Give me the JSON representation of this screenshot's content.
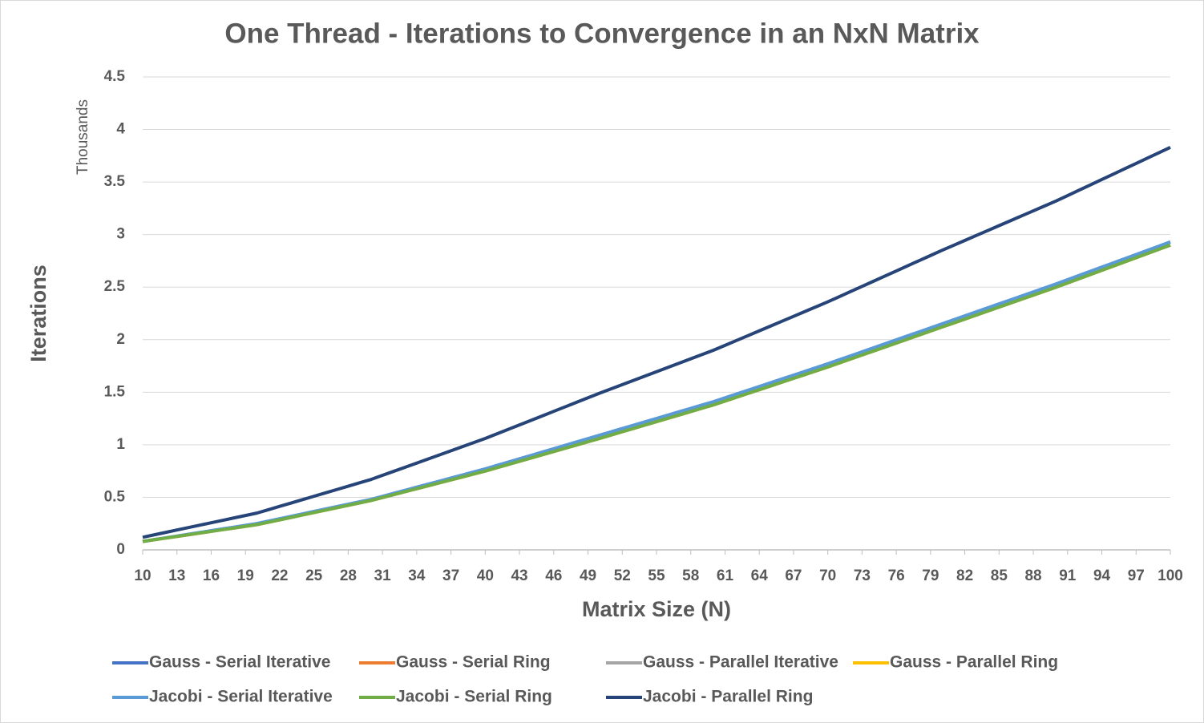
{
  "chart_data": {
    "type": "line",
    "title": "One Thread - Iterations to Convergence in an NxN Matrix",
    "y_label": "Iterations",
    "y_unit": "Thousands",
    "x_label": "Matrix Size (N)",
    "x": [
      10,
      11,
      12,
      13,
      14,
      15,
      16,
      17,
      18,
      19,
      20,
      21,
      22,
      23,
      24,
      25,
      26,
      27,
      28,
      29,
      30,
      31,
      32,
      33,
      34,
      35,
      36,
      37,
      38,
      39,
      40,
      41,
      42,
      43,
      44,
      45,
      46,
      47,
      48,
      49,
      50,
      51,
      52,
      53,
      54,
      55,
      56,
      57,
      58,
      59,
      60,
      61,
      62,
      63,
      64,
      65,
      66,
      67,
      68,
      69,
      70,
      71,
      72,
      73,
      74,
      75,
      76,
      77,
      78,
      79,
      80,
      81,
      82,
      83,
      84,
      85,
      86,
      87,
      88,
      89,
      90,
      91,
      92,
      93,
      94,
      95,
      96,
      97,
      98,
      99,
      100
    ],
    "xlim": [
      10,
      100
    ],
    "xticks": [
      10,
      13,
      16,
      19,
      22,
      25,
      28,
      31,
      34,
      37,
      40,
      43,
      46,
      49,
      52,
      55,
      58,
      61,
      64,
      67,
      70,
      73,
      76,
      79,
      82,
      85,
      88,
      91,
      94,
      97,
      100
    ],
    "ylim": [
      0,
      4.5
    ],
    "yticks": [
      0,
      0.5,
      1,
      1.5,
      2,
      2.5,
      3,
      3.5,
      4,
      4.5
    ],
    "grid": true,
    "legend": "bottom",
    "series": [
      {
        "name": "Gauss - Serial Iterative",
        "color": "#4472c4",
        "values": [
          0.08,
          0.097,
          0.114,
          0.131,
          0.148,
          0.165,
          0.182,
          0.199,
          0.216,
          0.233,
          0.25,
          0.273,
          0.296,
          0.319,
          0.342,
          0.365,
          0.388,
          0.411,
          0.434,
          0.457,
          0.48,
          0.509,
          0.538,
          0.567,
          0.596,
          0.625,
          0.654,
          0.683,
          0.712,
          0.741,
          0.77,
          0.802,
          0.834,
          0.866,
          0.898,
          0.93,
          0.962,
          0.994,
          1.026,
          1.058,
          1.09,
          1.122,
          1.154,
          1.186,
          1.218,
          1.25,
          1.282,
          1.314,
          1.346,
          1.378,
          1.41,
          1.446,
          1.482,
          1.518,
          1.554,
          1.59,
          1.626,
          1.662,
          1.698,
          1.734,
          1.77,
          1.808,
          1.846,
          1.884,
          1.922,
          1.96,
          1.998,
          2.036,
          2.074,
          2.112,
          2.15,
          2.188,
          2.226,
          2.264,
          2.302,
          2.34,
          2.378,
          2.416,
          2.454,
          2.492,
          2.53,
          2.57,
          2.61,
          2.65,
          2.69,
          2.73,
          2.77,
          2.81,
          2.85,
          2.89,
          2.93
        ]
      },
      {
        "name": "Gauss - Serial Ring",
        "color": "#ed7d31",
        "values": [
          0.08,
          0.096,
          0.112,
          0.128,
          0.144,
          0.16,
          0.176,
          0.192,
          0.208,
          0.224,
          0.24,
          0.263,
          0.286,
          0.309,
          0.332,
          0.355,
          0.378,
          0.401,
          0.424,
          0.447,
          0.47,
          0.498,
          0.526,
          0.554,
          0.582,
          0.61,
          0.638,
          0.666,
          0.694,
          0.722,
          0.75,
          0.781,
          0.812,
          0.843,
          0.874,
          0.905,
          0.936,
          0.967,
          0.998,
          1.029,
          1.06,
          1.092,
          1.124,
          1.156,
          1.188,
          1.22,
          1.252,
          1.284,
          1.316,
          1.348,
          1.38,
          1.416,
          1.452,
          1.488,
          1.524,
          1.56,
          1.596,
          1.632,
          1.668,
          1.704,
          1.74,
          1.778,
          1.816,
          1.854,
          1.892,
          1.93,
          1.968,
          2.006,
          2.044,
          2.082,
          2.12,
          2.158,
          2.196,
          2.234,
          2.272,
          2.31,
          2.348,
          2.386,
          2.424,
          2.462,
          2.5,
          2.54,
          2.58,
          2.62,
          2.66,
          2.7,
          2.74,
          2.78,
          2.82,
          2.86,
          2.9
        ]
      },
      {
        "name": "Gauss - Parallel Iterative",
        "color": "#a5a5a5",
        "values": [
          0.08,
          0.096,
          0.112,
          0.128,
          0.144,
          0.16,
          0.176,
          0.192,
          0.208,
          0.224,
          0.24,
          0.263,
          0.286,
          0.309,
          0.332,
          0.355,
          0.378,
          0.401,
          0.424,
          0.447,
          0.47,
          0.498,
          0.526,
          0.554,
          0.582,
          0.61,
          0.638,
          0.666,
          0.694,
          0.722,
          0.75,
          0.781,
          0.812,
          0.843,
          0.874,
          0.905,
          0.936,
          0.967,
          0.998,
          1.029,
          1.06,
          1.092,
          1.124,
          1.156,
          1.188,
          1.22,
          1.252,
          1.284,
          1.316,
          1.348,
          1.38,
          1.416,
          1.452,
          1.488,
          1.524,
          1.56,
          1.596,
          1.632,
          1.668,
          1.704,
          1.74,
          1.778,
          1.816,
          1.854,
          1.892,
          1.93,
          1.968,
          2.006,
          2.044,
          2.082,
          2.12,
          2.158,
          2.196,
          2.234,
          2.272,
          2.31,
          2.348,
          2.386,
          2.424,
          2.462,
          2.5,
          2.54,
          2.58,
          2.62,
          2.66,
          2.7,
          2.74,
          2.78,
          2.82,
          2.86,
          2.9
        ]
      },
      {
        "name": "Gauss - Parallel Ring",
        "color": "#ffc000",
        "values": [
          0.08,
          0.096,
          0.112,
          0.128,
          0.144,
          0.16,
          0.176,
          0.192,
          0.208,
          0.224,
          0.24,
          0.263,
          0.286,
          0.309,
          0.332,
          0.355,
          0.378,
          0.401,
          0.424,
          0.447,
          0.47,
          0.498,
          0.526,
          0.554,
          0.582,
          0.61,
          0.638,
          0.666,
          0.694,
          0.722,
          0.75,
          0.781,
          0.812,
          0.843,
          0.874,
          0.905,
          0.936,
          0.967,
          0.998,
          1.029,
          1.06,
          1.092,
          1.124,
          1.156,
          1.188,
          1.22,
          1.252,
          1.284,
          1.316,
          1.348,
          1.38,
          1.416,
          1.452,
          1.488,
          1.524,
          1.56,
          1.596,
          1.632,
          1.668,
          1.704,
          1.74,
          1.778,
          1.816,
          1.854,
          1.892,
          1.93,
          1.968,
          2.006,
          2.044,
          2.082,
          2.12,
          2.158,
          2.196,
          2.234,
          2.272,
          2.31,
          2.348,
          2.386,
          2.424,
          2.462,
          2.5,
          2.54,
          2.58,
          2.62,
          2.66,
          2.7,
          2.74,
          2.78,
          2.82,
          2.86,
          2.9
        ]
      },
      {
        "name": "Jacobi - Serial Iterative",
        "color": "#5b9bd5",
        "values": [
          0.08,
          0.097,
          0.114,
          0.131,
          0.148,
          0.165,
          0.182,
          0.199,
          0.216,
          0.233,
          0.25,
          0.273,
          0.296,
          0.319,
          0.342,
          0.365,
          0.388,
          0.411,
          0.434,
          0.457,
          0.48,
          0.509,
          0.538,
          0.567,
          0.596,
          0.625,
          0.654,
          0.683,
          0.712,
          0.741,
          0.77,
          0.802,
          0.834,
          0.866,
          0.898,
          0.93,
          0.962,
          0.994,
          1.026,
          1.058,
          1.09,
          1.122,
          1.154,
          1.186,
          1.218,
          1.25,
          1.282,
          1.314,
          1.346,
          1.378,
          1.41,
          1.446,
          1.482,
          1.518,
          1.554,
          1.59,
          1.626,
          1.662,
          1.698,
          1.734,
          1.77,
          1.808,
          1.846,
          1.884,
          1.922,
          1.96,
          1.998,
          2.036,
          2.074,
          2.112,
          2.15,
          2.188,
          2.226,
          2.264,
          2.302,
          2.34,
          2.378,
          2.416,
          2.454,
          2.492,
          2.53,
          2.57,
          2.61,
          2.65,
          2.69,
          2.73,
          2.77,
          2.81,
          2.85,
          2.89,
          2.93
        ]
      },
      {
        "name": "Jacobi - Serial Ring",
        "color": "#70ad47",
        "values": [
          0.08,
          0.096,
          0.112,
          0.128,
          0.144,
          0.16,
          0.176,
          0.192,
          0.208,
          0.224,
          0.24,
          0.263,
          0.286,
          0.309,
          0.332,
          0.355,
          0.378,
          0.401,
          0.424,
          0.447,
          0.47,
          0.498,
          0.526,
          0.554,
          0.582,
          0.61,
          0.638,
          0.666,
          0.694,
          0.722,
          0.75,
          0.781,
          0.812,
          0.843,
          0.874,
          0.905,
          0.936,
          0.967,
          0.998,
          1.029,
          1.06,
          1.092,
          1.124,
          1.156,
          1.188,
          1.22,
          1.252,
          1.284,
          1.316,
          1.348,
          1.38,
          1.416,
          1.452,
          1.488,
          1.524,
          1.56,
          1.596,
          1.632,
          1.668,
          1.704,
          1.74,
          1.778,
          1.816,
          1.854,
          1.892,
          1.93,
          1.968,
          2.006,
          2.044,
          2.082,
          2.12,
          2.158,
          2.196,
          2.234,
          2.272,
          2.31,
          2.348,
          2.386,
          2.424,
          2.462,
          2.5,
          2.54,
          2.58,
          2.62,
          2.66,
          2.7,
          2.74,
          2.78,
          2.82,
          2.86,
          2.9
        ]
      },
      {
        "name": "Jacobi - Parallel Ring",
        "color": "#264478",
        "values": [
          0.12,
          0.143,
          0.166,
          0.189,
          0.212,
          0.235,
          0.258,
          0.281,
          0.304,
          0.327,
          0.35,
          0.382,
          0.414,
          0.446,
          0.478,
          0.51,
          0.542,
          0.574,
          0.606,
          0.638,
          0.67,
          0.709,
          0.748,
          0.787,
          0.826,
          0.865,
          0.904,
          0.943,
          0.982,
          1.021,
          1.06,
          1.103,
          1.146,
          1.189,
          1.232,
          1.275,
          1.318,
          1.361,
          1.404,
          1.447,
          1.49,
          1.531,
          1.572,
          1.613,
          1.654,
          1.695,
          1.736,
          1.777,
          1.818,
          1.859,
          1.9,
          1.946,
          1.992,
          2.038,
          2.084,
          2.13,
          2.176,
          2.222,
          2.268,
          2.314,
          2.36,
          2.409,
          2.458,
          2.507,
          2.556,
          2.605,
          2.654,
          2.703,
          2.752,
          2.801,
          2.85,
          2.897,
          2.944,
          2.991,
          3.038,
          3.085,
          3.132,
          3.179,
          3.226,
          3.273,
          3.32,
          3.371,
          3.422,
          3.473,
          3.524,
          3.575,
          3.626,
          3.677,
          3.728,
          3.779,
          3.83
        ]
      }
    ]
  }
}
